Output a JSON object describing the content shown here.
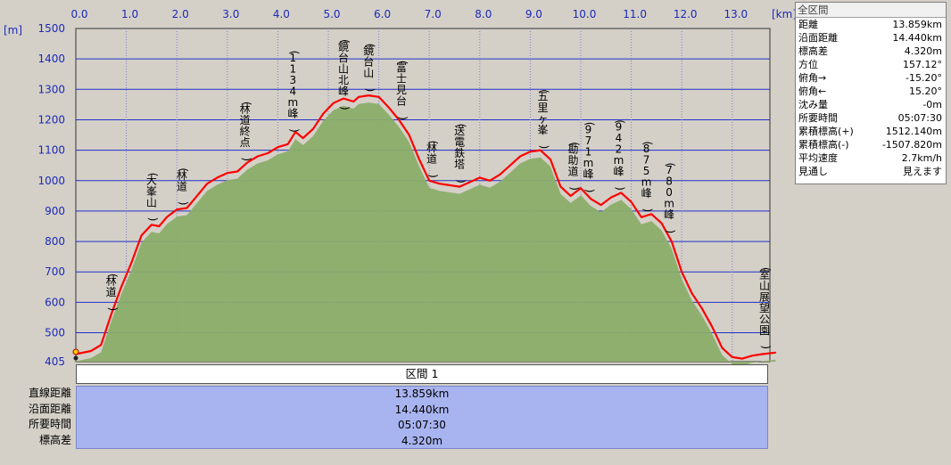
{
  "chart_data": {
    "type": "area",
    "x_unit_label": "[km]",
    "y_unit_label": "[m]",
    "xlim": [
      0,
      13.859
    ],
    "ylim": [
      405,
      1500
    ],
    "x_ticks": [
      "0.0",
      "1.0",
      "2.0",
      "3.0",
      "4.0",
      "5.0",
      "6.0",
      "7.0",
      "8.0",
      "9.0",
      "10.0",
      "11.0",
      "12.0",
      "13.0"
    ],
    "y_ticks": [
      "1500",
      "1400",
      "1300",
      "1200",
      "1100",
      "1000",
      "900",
      "800",
      "700",
      "600",
      "500",
      "405"
    ],
    "grid": true,
    "series": [
      {
        "line_color": "#ff0000",
        "fill_color": "#8bad6a",
        "points": [
          [
            0.0,
            430
          ],
          [
            0.3,
            440
          ],
          [
            0.5,
            460
          ],
          [
            0.7,
            560
          ],
          [
            0.9,
            650
          ],
          [
            1.1,
            730
          ],
          [
            1.3,
            820
          ],
          [
            1.5,
            855
          ],
          [
            1.65,
            850
          ],
          [
            1.8,
            880
          ],
          [
            2.0,
            905
          ],
          [
            2.2,
            910
          ],
          [
            2.4,
            950
          ],
          [
            2.6,
            990
          ],
          [
            2.8,
            1010
          ],
          [
            3.0,
            1025
          ],
          [
            3.2,
            1030
          ],
          [
            3.4,
            1060
          ],
          [
            3.6,
            1080
          ],
          [
            3.8,
            1090
          ],
          [
            4.0,
            1110
          ],
          [
            4.2,
            1120
          ],
          [
            4.35,
            1160
          ],
          [
            4.5,
            1140
          ],
          [
            4.7,
            1170
          ],
          [
            4.9,
            1220
          ],
          [
            5.1,
            1255
          ],
          [
            5.3,
            1270
          ],
          [
            5.5,
            1260
          ],
          [
            5.6,
            1275
          ],
          [
            5.8,
            1280
          ],
          [
            6.0,
            1275
          ],
          [
            6.2,
            1240
          ],
          [
            6.4,
            1200
          ],
          [
            6.6,
            1150
          ],
          [
            6.8,
            1070
          ],
          [
            7.0,
            1000
          ],
          [
            7.2,
            990
          ],
          [
            7.4,
            985
          ],
          [
            7.6,
            980
          ],
          [
            7.8,
            995
          ],
          [
            8.0,
            1010
          ],
          [
            8.2,
            1000
          ],
          [
            8.4,
            1020
          ],
          [
            8.6,
            1050
          ],
          [
            8.8,
            1080
          ],
          [
            9.0,
            1095
          ],
          [
            9.2,
            1100
          ],
          [
            9.4,
            1070
          ],
          [
            9.6,
            980
          ],
          [
            9.8,
            950
          ],
          [
            10.0,
            975
          ],
          [
            10.2,
            940
          ],
          [
            10.4,
            920
          ],
          [
            10.6,
            945
          ],
          [
            10.8,
            960
          ],
          [
            11.0,
            930
          ],
          [
            11.2,
            880
          ],
          [
            11.4,
            890
          ],
          [
            11.6,
            860
          ],
          [
            11.8,
            800
          ],
          [
            12.0,
            700
          ],
          [
            12.2,
            630
          ],
          [
            12.4,
            580
          ],
          [
            12.6,
            520
          ],
          [
            12.8,
            450
          ],
          [
            13.0,
            420
          ],
          [
            13.2,
            415
          ],
          [
            13.4,
            425
          ],
          [
            13.6,
            430
          ],
          [
            13.859,
            435
          ]
        ]
      }
    ],
    "annotations": [
      {
        "label": "(林道)",
        "x": 0.7
      },
      {
        "label": "(大峯山)",
        "x": 1.5
      },
      {
        "label": "(林道)",
        "x": 2.1
      },
      {
        "label": "(林道終点)",
        "x": 3.35
      },
      {
        "label": "(1134m峰)",
        "x": 4.3
      },
      {
        "label": "(鏡台山北峰)",
        "x": 5.3
      },
      {
        "label": "(鏡台山)",
        "x": 5.8
      },
      {
        "label": "(富士見台)",
        "x": 6.45
      },
      {
        "label": "(林道)",
        "x": 7.05
      },
      {
        "label": "(送電鉄塔)",
        "x": 7.6
      },
      {
        "label": "(五里ヶ峯)",
        "x": 9.25
      },
      {
        "label": "(勘助道)",
        "x": 9.85
      },
      {
        "label": "(971m峰)",
        "x": 10.15
      },
      {
        "label": "(942m峰)",
        "x": 10.75
      },
      {
        "label": "(875m峰)",
        "x": 11.3
      },
      {
        "label": "(780m峰)",
        "x": 11.75
      },
      {
        "label": "(室山展望公園)",
        "x": 13.85
      }
    ]
  },
  "stats_panel": {
    "title": "全区間",
    "rows": [
      {
        "label": "距離",
        "value": "13.859km"
      },
      {
        "label": "沿面距離",
        "value": "14.440km"
      },
      {
        "label": "標高差",
        "value": "4.320m"
      },
      {
        "label": "方位",
        "value": "157.12°"
      },
      {
        "label": "俯角→",
        "value": "-15.20°"
      },
      {
        "label": "俯角←",
        "value": "15.20°"
      },
      {
        "label": "沈み量",
        "value": "-0m"
      },
      {
        "label": "所要時間",
        "value": "05:07:30"
      },
      {
        "label": "累積標高(+)",
        "value": "1512.140m"
      },
      {
        "label": "累積標高(-)",
        "value": "-1507.820m"
      },
      {
        "label": "平均速度",
        "value": "2.7km/h"
      },
      {
        "label": "見通し",
        "value": "見えます"
      }
    ]
  },
  "section": {
    "header": "区間 1",
    "rows": [
      {
        "label": "直線距離",
        "value": "13.859km"
      },
      {
        "label": "沿面距離",
        "value": "14.440km"
      },
      {
        "label": "所要時間",
        "value": "05:07:30"
      },
      {
        "label": "標高差",
        "value": "4.320m"
      }
    ]
  }
}
